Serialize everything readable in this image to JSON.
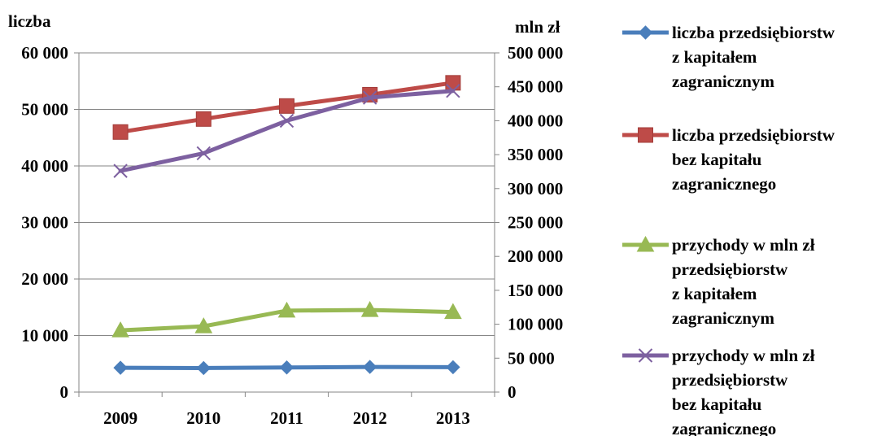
{
  "chart_data": {
    "type": "line",
    "title": "",
    "xlabel": "",
    "ylabel_left": "liczba",
    "ylabel_right": "mln zł",
    "categories": [
      "2009",
      "2010",
      "2011",
      "2012",
      "2013"
    ],
    "y_left": {
      "ylim": [
        0,
        60000
      ],
      "ticks": [
        0,
        10000,
        20000,
        30000,
        40000,
        50000,
        60000
      ],
      "tick_labels": [
        "0",
        "10 000",
        "20 000",
        "30 000",
        "40 000",
        "50 000",
        "60 000"
      ]
    },
    "y_right": {
      "ylim": [
        0,
        500000
      ],
      "ticks": [
        0,
        50000,
        100000,
        150000,
        200000,
        250000,
        300000,
        350000,
        400000,
        450000,
        500000
      ],
      "tick_labels": [
        "0",
        "50 000",
        "100 000",
        "150 000",
        "200 000",
        "250 000",
        "300 000",
        "350 000",
        "400 000",
        "450 000",
        "500 000"
      ]
    },
    "grid": "horizontal",
    "legend_position": "right",
    "series": [
      {
        "name": "liczba przedsiębiorstw z kapitałem zagranicznym",
        "legend_lines": [
          "liczba przedsiębiorstw",
          "z kapitałem",
          "zagranicznym"
        ],
        "axis": "left",
        "marker": "diamond",
        "color": "#4a7ebb",
        "values": [
          4300,
          4250,
          4350,
          4450,
          4400
        ]
      },
      {
        "name": "liczba przedsiębiorstw bez kapitału zagranicznego",
        "legend_lines": [
          "liczba przedsiębiorstw",
          "bez kapitału",
          "zagranicznego"
        ],
        "axis": "left",
        "marker": "square",
        "color": "#be4b48",
        "values": [
          46000,
          48300,
          50600,
          52600,
          54700
        ]
      },
      {
        "name": "przychody w mln zł przedsiębiorstw z kapitałem zagranicznym",
        "legend_lines": [
          "przychody w mln zł",
          "przedsiębiorstw",
          "z kapitałem",
          "zagranicznym"
        ],
        "axis": "right",
        "marker": "triangle",
        "color": "#98b954",
        "values": [
          91000,
          97000,
          120000,
          121000,
          118000
        ]
      },
      {
        "name": "przychody w mln zł przedsiębiorstw bez kapitału zagranicznego",
        "legend_lines": [
          "przychody w mln zł",
          "przedsiębiorstw",
          "bez kapitału",
          "zagranicznego"
        ],
        "axis": "right",
        "marker": "x",
        "color": "#7d60a0",
        "values": [
          326000,
          352000,
          400000,
          434000,
          444000
        ]
      }
    ]
  }
}
